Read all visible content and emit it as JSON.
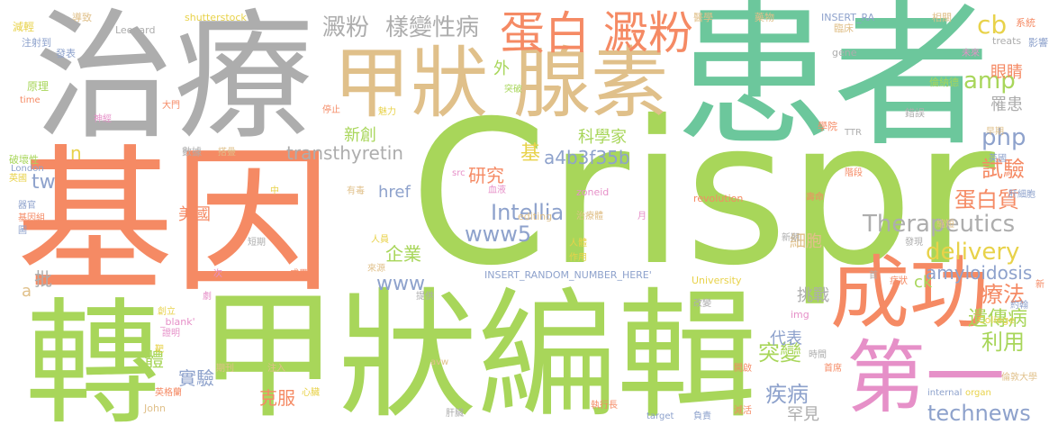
{
  "colors": {
    "green": "#a8d65a",
    "teal": "#6cc79c",
    "orange": "#f58a64",
    "tan": "#e0c08a",
    "gray": "#adadad",
    "blue": "#8ea2cc",
    "pink": "#e690c8",
    "yellow": "#e8d24a"
  },
  "words": [
    {
      "text": "Crispr",
      "color": "green"
    },
    {
      "text": "患者",
      "color": "teal"
    },
    {
      "text": "治療",
      "color": "gray"
    },
    {
      "text": "基因",
      "color": "orange"
    },
    {
      "text": "甲狀編輯",
      "color": "green"
    },
    {
      "text": "轉",
      "color": "green"
    },
    {
      "text": "甲狀",
      "color": "tan"
    },
    {
      "text": "腺素",
      "color": "tan"
    },
    {
      "text": "成功",
      "color": "orange"
    },
    {
      "text": "第一",
      "color": "pink"
    },
    {
      "text": "蛋白",
      "color": "orange"
    },
    {
      "text": "澱粉",
      "color": "orange"
    },
    {
      "text": "澱粉",
      "color": "gray"
    },
    {
      "text": "樣變性病",
      "color": "gray"
    },
    {
      "text": "cb",
      "color": "yellow"
    },
    {
      "text": "amp",
      "color": "green"
    },
    {
      "text": "php",
      "color": "blue"
    },
    {
      "text": "Therapeutics",
      "color": "gray"
    },
    {
      "text": "delivery",
      "color": "yellow"
    },
    {
      "text": "Intellia",
      "color": "blue"
    },
    {
      "text": "www5",
      "color": "blue"
    },
    {
      "text": "technews",
      "color": "blue"
    },
    {
      "text": "transthyretin",
      "color": "gray"
    },
    {
      "text": "a4b3f35b",
      "color": "blue"
    },
    {
      "text": "amyloidosis",
      "color": "blue"
    },
    {
      "text": "蛋白質",
      "color": "orange"
    },
    {
      "text": "試驗",
      "color": "orange"
    },
    {
      "text": "療法",
      "color": "orange"
    },
    {
      "text": "遺傳病",
      "color": "green"
    },
    {
      "text": "利用",
      "color": "green"
    },
    {
      "text": "突變",
      "color": "green"
    },
    {
      "text": "疾病",
      "color": "blue"
    },
    {
      "text": "罕見",
      "color": "gray"
    },
    {
      "text": "挑戰",
      "color": "gray"
    },
    {
      "text": "代表",
      "color": "blue"
    },
    {
      "text": "細胞",
      "color": "tan"
    },
    {
      "text": "研究",
      "color": "orange"
    },
    {
      "text": "基",
      "color": "yellow"
    },
    {
      "text": "企業",
      "color": "green"
    },
    {
      "text": "www",
      "color": "blue"
    },
    {
      "text": "href",
      "color": "blue"
    },
    {
      "text": "新創",
      "color": "green"
    },
    {
      "text": "科學家",
      "color": "green"
    },
    {
      "text": "美國",
      "color": "orange"
    },
    {
      "text": "體",
      "color": "green"
    },
    {
      "text": "實驗",
      "color": "blue"
    },
    {
      "text": "克服",
      "color": "orange"
    },
    {
      "text": "tw",
      "color": "blue"
    },
    {
      "text": "批",
      "color": "gray"
    },
    {
      "text": "眼睛",
      "color": "orange"
    },
    {
      "text": "罹患",
      "color": "gray"
    },
    {
      "text": "外",
      "color": "green"
    },
    {
      "text": "ck",
      "color": "green"
    },
    {
      "text": "n",
      "color": "yellow"
    },
    {
      "text": "a",
      "color": "tan"
    },
    {
      "text": "Leonard",
      "color": "gray"
    },
    {
      "text": "shutterstock",
      "color": "yellow"
    },
    {
      "text": "INSERT_RA",
      "color": "blue"
    },
    {
      "text": "INSERT_RANDOM_NUMBER_HERE'",
      "color": "blue"
    },
    {
      "text": "University",
      "color": "yellow"
    },
    {
      "text": "revolution",
      "color": "orange"
    },
    {
      "text": "zoneid",
      "color": "pink"
    },
    {
      "text": "editing",
      "color": "tan"
    },
    {
      "text": "treats",
      "color": "gray"
    },
    {
      "text": "gene",
      "color": "gray"
    },
    {
      "text": "London",
      "color": "blue"
    },
    {
      "text": "time",
      "color": "orange"
    },
    {
      "text": "src",
      "color": "pink"
    },
    {
      "text": "TTR",
      "color": "gray"
    },
    {
      "text": "img",
      "color": "pink"
    },
    {
      "text": "College",
      "color": "yellow"
    },
    {
      "text": "_blank'",
      "color": "pink"
    },
    {
      "text": "avw",
      "color": "tan"
    },
    {
      "text": "John",
      "color": "tan"
    },
    {
      "text": "internal",
      "color": "blue"
    },
    {
      "text": "organ",
      "color": "yellow"
    },
    {
      "text": "target",
      "color": "blue"
    },
    {
      "text": "減輕",
      "color": "yellow"
    },
    {
      "text": "導致",
      "color": "tan"
    },
    {
      "text": "注射到",
      "color": "blue"
    },
    {
      "text": "發表",
      "color": "blue"
    },
    {
      "text": "原理",
      "color": "green"
    },
    {
      "text": "神經",
      "color": "pink"
    },
    {
      "text": "大門",
      "color": "orange"
    },
    {
      "text": "數據",
      "color": "gray"
    },
    {
      "text": "破壞性",
      "color": "green"
    },
    {
      "text": "英國",
      "color": "yellow"
    },
    {
      "text": "器官",
      "color": "blue"
    },
    {
      "text": "基因組",
      "color": "orange"
    },
    {
      "text": "圖",
      "color": "blue"
    },
    {
      "text": "醫學",
      "color": "tan"
    },
    {
      "text": "藥物",
      "color": "tan"
    },
    {
      "text": "臨床",
      "color": "tan"
    },
    {
      "text": "相關",
      "color": "tan"
    },
    {
      "text": "系統",
      "color": "orange"
    },
    {
      "text": "影響",
      "color": "blue"
    },
    {
      "text": "未來",
      "color": "pink"
    },
    {
      "text": "倫納德",
      "color": "green"
    },
    {
      "text": "錯誤",
      "color": "gray"
    },
    {
      "text": "早期",
      "color": "tan"
    },
    {
      "text": "英國",
      "color": "blue"
    },
    {
      "text": "學院",
      "color": "orange"
    },
    {
      "text": "突破",
      "color": "green"
    },
    {
      "text": "停止",
      "color": "orange"
    },
    {
      "text": "魅力",
      "color": "yellow"
    },
    {
      "text": "搭疊",
      "color": "tan"
    },
    {
      "text": "中",
      "color": "yellow"
    },
    {
      "text": "有毒",
      "color": "tan"
    },
    {
      "text": "血液",
      "color": "pink"
    },
    {
      "text": "治療體",
      "color": "tan"
    },
    {
      "text": "月",
      "color": "pink"
    },
    {
      "text": "階段",
      "color": "orange"
    },
    {
      "text": "壽命",
      "color": "orange"
    },
    {
      "text": "肝細胞",
      "color": "blue"
    },
    {
      "text": "縮短",
      "color": "tan"
    },
    {
      "text": "發現",
      "color": "gray"
    },
    {
      "text": "新期",
      "color": "gray"
    },
    {
      "text": "短期",
      "color": "gray"
    },
    {
      "text": "人員",
      "color": "yellow"
    },
    {
      "text": "人體",
      "color": "yellow"
    },
    {
      "text": "作用",
      "color": "yellow"
    },
    {
      "text": "來源",
      "color": "tan"
    },
    {
      "text": "成果",
      "color": "orange"
    },
    {
      "text": "次",
      "color": "pink"
    },
    {
      "text": "首",
      "color": "gray"
    },
    {
      "text": "症狀",
      "color": "orange"
    },
    {
      "text": "新",
      "color": "orange"
    },
    {
      "text": "劇",
      "color": "pink"
    },
    {
      "text": "提供",
      "color": "gray"
    },
    {
      "text": "改變",
      "color": "gray"
    },
    {
      "text": "約翰",
      "color": "blue"
    },
    {
      "text": "創立",
      "color": "yellow"
    },
    {
      "text": "證明",
      "color": "pink"
    },
    {
      "text": "靶",
      "color": "yellow"
    },
    {
      "text": "時間",
      "color": "gray"
    },
    {
      "text": "期刊",
      "color": "tan"
    },
    {
      "text": "注入",
      "color": "tan"
    },
    {
      "text": "開啟",
      "color": "orange"
    },
    {
      "text": "首席",
      "color": "orange"
    },
    {
      "text": "英格蘭",
      "color": "orange"
    },
    {
      "text": "心臟",
      "color": "yellow"
    },
    {
      "text": "肝臟",
      "color": "gray"
    },
    {
      "text": "執行長",
      "color": "orange"
    },
    {
      "text": "負責",
      "color": "blue"
    },
    {
      "text": "減活",
      "color": "orange"
    },
    {
      "text": "倫敦大學",
      "color": "tan"
    }
  ]
}
